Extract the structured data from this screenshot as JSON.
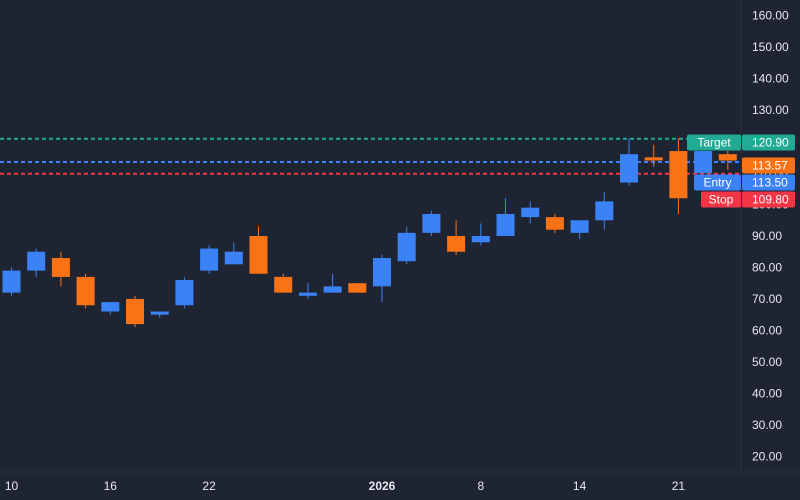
{
  "chart_data": {
    "type": "candlestick",
    "y_ticks": [
      "20.00",
      "30.00",
      "40.00",
      "50.00",
      "60.00",
      "70.00",
      "80.00",
      "90.00",
      "100.00",
      "110.00",
      "120.00",
      "130.00",
      "140.00",
      "150.00",
      "160.00"
    ],
    "ylim": [
      15,
      165
    ],
    "x_ticks": [
      {
        "label": "10",
        "index": 0,
        "bold": false
      },
      {
        "label": "16",
        "index": 4,
        "bold": false
      },
      {
        "label": "22",
        "index": 8,
        "bold": false
      },
      {
        "label": "2026",
        "index": 15,
        "bold": true
      },
      {
        "label": "8",
        "index": 19,
        "bold": false
      },
      {
        "label": "14",
        "index": 23,
        "bold": false
      },
      {
        "label": "21",
        "index": 27,
        "bold": false
      }
    ],
    "candles": [
      {
        "o": 72,
        "h": 80,
        "l": 71,
        "c": 79
      },
      {
        "o": 79,
        "h": 86,
        "l": 77,
        "c": 85
      },
      {
        "o": 83,
        "h": 85,
        "l": 74,
        "c": 77
      },
      {
        "o": 77,
        "h": 78,
        "l": 67,
        "c": 68
      },
      {
        "o": 66,
        "h": 69,
        "l": 65,
        "c": 69
      },
      {
        "o": 70,
        "h": 71,
        "l": 61,
        "c": 62
      },
      {
        "o": 65,
        "h": 66,
        "l": 64,
        "c": 66
      },
      {
        "o": 68,
        "h": 77,
        "l": 67,
        "c": 76
      },
      {
        "o": 79,
        "h": 87,
        "l": 78,
        "c": 86
      },
      {
        "o": 81,
        "h": 88,
        "l": 81,
        "c": 85
      },
      {
        "o": 90,
        "h": 93,
        "l": 78,
        "c": 78
      },
      {
        "o": 77,
        "h": 78,
        "l": 72,
        "c": 72
      },
      {
        "o": 71,
        "h": 75,
        "l": 70,
        "c": 72
      },
      {
        "o": 72,
        "h": 78,
        "l": 72,
        "c": 74
      },
      {
        "o": 75,
        "h": 75,
        "l": 72,
        "c": 72
      },
      {
        "o": 74,
        "h": 84,
        "l": 69,
        "c": 83
      },
      {
        "o": 82,
        "h": 93,
        "l": 81,
        "c": 91
      },
      {
        "o": 91,
        "h": 98,
        "l": 90,
        "c": 97
      },
      {
        "o": 90,
        "h": 95,
        "l": 84,
        "c": 85
      },
      {
        "o": 88,
        "h": 94,
        "l": 87,
        "c": 90
      },
      {
        "o": 90,
        "h": 102,
        "l": 90,
        "c": 97
      },
      {
        "o": 96,
        "h": 101,
        "l": 94,
        "c": 99
      },
      {
        "o": 96,
        "h": 97,
        "l": 91,
        "c": 92
      },
      {
        "o": 91,
        "h": 95,
        "l": 89,
        "c": 95
      },
      {
        "o": 95,
        "h": 104,
        "l": 92,
        "c": 101
      },
      {
        "o": 107,
        "h": 121,
        "l": 106,
        "c": 116
      },
      {
        "o": 115,
        "h": 119,
        "l": 112,
        "c": 114
      },
      {
        "o": 117,
        "h": 121,
        "l": 97,
        "c": 102
      },
      {
        "o": 110,
        "h": 117,
        "l": 110,
        "c": 117
      },
      {
        "o": 116,
        "h": 117,
        "l": 111,
        "c": 114
      }
    ],
    "levels": [
      {
        "name": "Target",
        "value": 120.9,
        "label": "Target",
        "value_label": "120.90",
        "color": "#22ab94",
        "dash": "4,3"
      },
      {
        "name": "Entry",
        "value": 113.5,
        "label": "Entry",
        "value_label": "113.50",
        "color": "#3b82f6",
        "dash": "4,3"
      },
      {
        "name": "Stop",
        "value": 109.8,
        "label": "Stop",
        "value_label": "109.80",
        "color": "#f23645",
        "dash": "4,3"
      }
    ],
    "last_price": {
      "value": 113.57,
      "label": "113.57",
      "color": "#f97316"
    },
    "colors": {
      "up": "#3b82f6",
      "down": "#f97316",
      "background": "#1f2433",
      "axis_text": "#e6e8ee"
    }
  }
}
